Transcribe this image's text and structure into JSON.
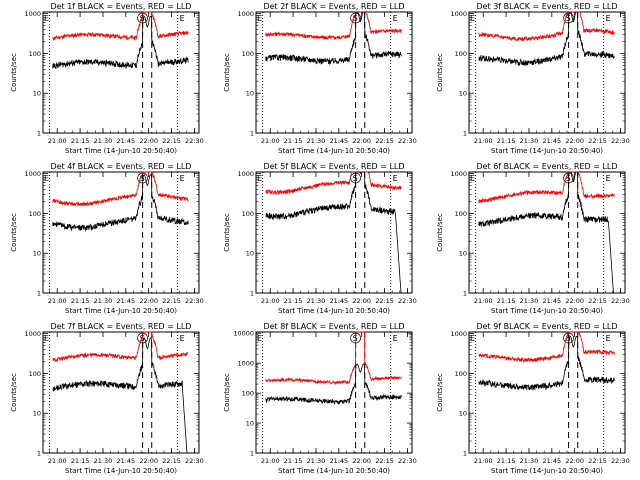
{
  "figure": {
    "panels": [
      {
        "title": "Det 1f BLACK = Events, RED = LLD",
        "ylabel": "Counts/sec",
        "xlabel": "Start Time (14-Jun-10 20:50:40)"
      },
      {
        "title": "Det 2f BLACK = Events, RED = LLD",
        "ylabel": "Counts/sec",
        "xlabel": "Start Time (14-Jun-10 20:50:40)"
      },
      {
        "title": "Det 3f BLACK = Events, RED = LLD",
        "ylabel": "Counts/sec",
        "xlabel": "Start Time (14-Jun-10 20:50:40)"
      },
      {
        "title": "Det 4f BLACK = Events, RED = LLD",
        "ylabel": "Counts/sec",
        "xlabel": "Start Time (14-Jun-10 20:50:40)"
      },
      {
        "title": "Det 5f BLACK = Events, RED = LLD",
        "ylabel": "Counts/sec",
        "xlabel": "Start Time (14-Jun-10 20:50:40)"
      },
      {
        "title": "Det 6f BLACK = Events, RED = LLD",
        "ylabel": "Counts/sec",
        "xlabel": "Start Time (14-Jun-10 20:50:40)"
      },
      {
        "title": "Det 7f BLACK = Events, RED = LLD",
        "ylabel": "Counts/sec",
        "xlabel": "Start Time (14-Jun-10 20:50:40)"
      },
      {
        "title": "Det 8f BLACK = Events, RED = LLD",
        "ylabel": "Counts/sec",
        "xlabel": "Start Time (14-Jun-10 20:50:40)"
      },
      {
        "title": "Det 9f BLACK = Events, RED = LLD",
        "ylabel": "Counts/sec",
        "xlabel": "Start Time (14-Jun-10 20:50:40)"
      }
    ],
    "markers": {
      "eclipse_label": "E",
      "saa_label": "S"
    }
  },
  "chart_data": {
    "type": "line",
    "yscale": "log",
    "layout": "3x3 grid",
    "x_tick_labels": [
      "21:00",
      "21:15",
      "21:30",
      "21:45",
      "22:00",
      "22:15",
      "22:30"
    ],
    "x_ticks_minutes": [
      0,
      15,
      30,
      45,
      60,
      75,
      90
    ],
    "xlim": [
      "20:50:40",
      "22:33:00"
    ],
    "y_tick_labels_default": [
      "1",
      "10",
      "100",
      "1000"
    ],
    "y_tick_labels_det8": [
      "1",
      "10",
      "100",
      "1000",
      "10000"
    ],
    "ylim_default": [
      1,
      1100
    ],
    "ylim_det8": [
      1,
      11000
    ],
    "colors": {
      "events": "#000000",
      "lld": "#ff0000"
    },
    "series": [
      {
        "name": "Events",
        "color": "#000000"
      },
      {
        "name": "LLD",
        "color": "#ff0000"
      }
    ],
    "panels": [
      {
        "det": "1f",
        "events_base": 55,
        "lld_base": 270,
        "saa_start": "21:56",
        "saa_end": "22:02",
        "eclipse_start": "20:55",
        "eclipse_end": "22:19"
      },
      {
        "det": "2f",
        "events_base": 75,
        "lld_base": 290,
        "saa_start": "21:56",
        "saa_end": "22:02",
        "eclipse_start": "20:55",
        "eclipse_end": "22:19"
      },
      {
        "det": "3f",
        "events_base": 75,
        "lld_base": 290,
        "saa_start": "21:56",
        "saa_end": "22:02",
        "eclipse_start": "20:55",
        "eclipse_end": "22:19"
      },
      {
        "det": "4f",
        "events_base": 60,
        "lld_base": 230,
        "saa_start": "21:56",
        "saa_end": "22:02",
        "eclipse_start": "20:55",
        "eclipse_end": "22:19"
      },
      {
        "det": "5f",
        "events_base": 120,
        "lld_base": 480,
        "saa_start": "21:56",
        "saa_end": "22:02",
        "eclipse_start": "20:55",
        "eclipse_end": "22:19"
      },
      {
        "det": "6f",
        "events_base": 75,
        "lld_base": 290,
        "saa_start": "21:56",
        "saa_end": "22:02",
        "eclipse_start": "20:55",
        "eclipse_end": "22:19"
      },
      {
        "det": "7f",
        "events_base": 50,
        "lld_base": 260,
        "saa_start": "21:56",
        "saa_end": "22:02",
        "eclipse_start": "20:55",
        "eclipse_end": "22:19"
      },
      {
        "det": "8f",
        "events_base": 60,
        "lld_base": 260,
        "saa_start": "21:56",
        "saa_end": "22:02",
        "eclipse_start": "20:55",
        "eclipse_end": "22:19"
      },
      {
        "det": "9f",
        "events_base": 55,
        "lld_base": 270,
        "saa_start": "21:56",
        "saa_end": "22:02",
        "eclipse_start": "20:55",
        "eclipse_end": "22:19"
      }
    ]
  }
}
